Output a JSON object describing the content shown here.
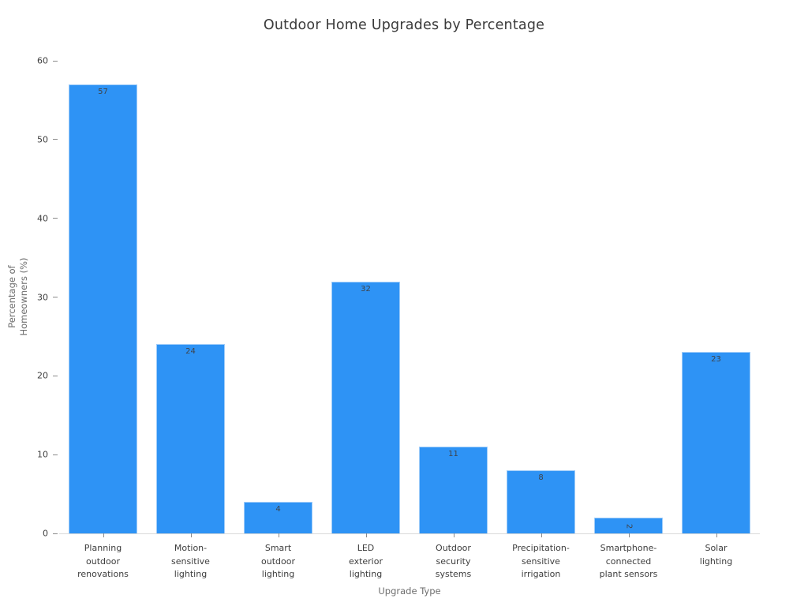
{
  "chart_data": {
    "type": "bar",
    "title": "Outdoor Home Upgrades by Percentage",
    "xlabel": "Upgrade Type",
    "ylabel": "Percentage of\nHomeowners (%)",
    "categories": [
      "Planning\noutdoor\nrenovations",
      "Motion-\nsensitive\nlighting",
      "Smart\noutdoor\nlighting",
      "LED\nexterior\nlighting",
      "Outdoor\nsecurity\nsystems",
      "Precipitation-\nsensitive\nirrigation",
      "Smartphone-\nconnected\nplant sensors",
      "Solar\nlighting"
    ],
    "values": [
      57,
      24,
      4,
      32,
      11,
      8,
      2,
      23
    ],
    "yticks": [
      0,
      10,
      20,
      30,
      40,
      50,
      60
    ],
    "ylim": [
      0,
      60
    ],
    "bar_color": "#2E93F5",
    "bar_edge_color": "#9fccf9",
    "grid": false,
    "legend_position": "none"
  }
}
